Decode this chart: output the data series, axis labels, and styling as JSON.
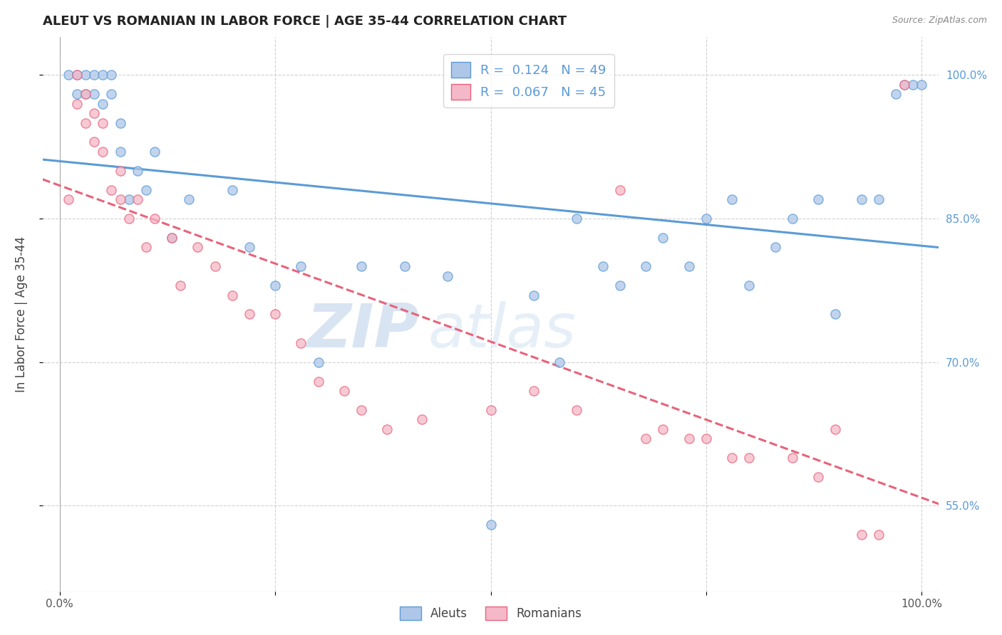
{
  "title": "ALEUT VS ROMANIAN IN LABOR FORCE | AGE 35-44 CORRELATION CHART",
  "source": "Source: ZipAtlas.com",
  "ylabel": "In Labor Force | Age 35-44",
  "r_aleut": 0.124,
  "n_aleut": 49,
  "r_romanian": 0.067,
  "n_romanian": 45,
  "aleut_fill": "#aec6e8",
  "aleut_edge": "#5b9bd5",
  "romanian_fill": "#f5b8c8",
  "romanian_edge": "#e8637a",
  "background_color": "#ffffff",
  "grid_color": "#cccccc",
  "xlim": [
    -0.02,
    1.02
  ],
  "ylim": [
    0.46,
    1.04
  ],
  "yticks": [
    0.55,
    0.7,
    0.85,
    1.0
  ],
  "ytick_labels": [
    "55.0%",
    "70.0%",
    "85.0%",
    "100.0%"
  ],
  "xticks": [
    0.0,
    0.25,
    0.5,
    0.75,
    1.0
  ],
  "xtick_labels": [
    "0.0%",
    "",
    "",
    "",
    "100.0%"
  ],
  "watermark_zip": "ZIP",
  "watermark_atlas": "atlas",
  "aleut_x": [
    0.01,
    0.02,
    0.02,
    0.03,
    0.03,
    0.04,
    0.04,
    0.05,
    0.05,
    0.06,
    0.06,
    0.07,
    0.07,
    0.08,
    0.09,
    0.1,
    0.11,
    0.13,
    0.15,
    0.2,
    0.22,
    0.25,
    0.28,
    0.3,
    0.35,
    0.4,
    0.45,
    0.5,
    0.55,
    0.58,
    0.6,
    0.63,
    0.65,
    0.68,
    0.7,
    0.73,
    0.75,
    0.78,
    0.8,
    0.83,
    0.85,
    0.88,
    0.9,
    0.93,
    0.95,
    0.97,
    0.98,
    0.99,
    1.0
  ],
  "aleut_y": [
    1.0,
    0.98,
    1.0,
    0.98,
    1.0,
    0.98,
    1.0,
    0.97,
    1.0,
    0.98,
    1.0,
    0.92,
    0.95,
    0.87,
    0.9,
    0.88,
    0.92,
    0.83,
    0.87,
    0.88,
    0.82,
    0.78,
    0.8,
    0.7,
    0.8,
    0.8,
    0.79,
    0.53,
    0.77,
    0.7,
    0.85,
    0.8,
    0.78,
    0.8,
    0.83,
    0.8,
    0.85,
    0.87,
    0.78,
    0.82,
    0.85,
    0.87,
    0.75,
    0.87,
    0.87,
    0.98,
    0.99,
    0.99,
    0.99
  ],
  "romanian_x": [
    0.01,
    0.02,
    0.02,
    0.03,
    0.03,
    0.04,
    0.04,
    0.05,
    0.05,
    0.06,
    0.07,
    0.07,
    0.08,
    0.09,
    0.1,
    0.11,
    0.13,
    0.14,
    0.16,
    0.18,
    0.2,
    0.22,
    0.25,
    0.28,
    0.3,
    0.33,
    0.35,
    0.38,
    0.42,
    0.5,
    0.55,
    0.6,
    0.65,
    0.68,
    0.7,
    0.73,
    0.75,
    0.78,
    0.8,
    0.85,
    0.88,
    0.9,
    0.93,
    0.95,
    0.98
  ],
  "romanian_y": [
    0.87,
    0.97,
    1.0,
    0.95,
    0.98,
    0.93,
    0.96,
    0.92,
    0.95,
    0.88,
    0.87,
    0.9,
    0.85,
    0.87,
    0.82,
    0.85,
    0.83,
    0.78,
    0.82,
    0.8,
    0.77,
    0.75,
    0.75,
    0.72,
    0.68,
    0.67,
    0.65,
    0.63,
    0.64,
    0.65,
    0.67,
    0.65,
    0.88,
    0.62,
    0.63,
    0.62,
    0.62,
    0.6,
    0.6,
    0.6,
    0.58,
    0.63,
    0.52,
    0.52,
    0.99
  ],
  "marker_size": 90,
  "marker_alpha": 0.75,
  "line_width": 2.2
}
